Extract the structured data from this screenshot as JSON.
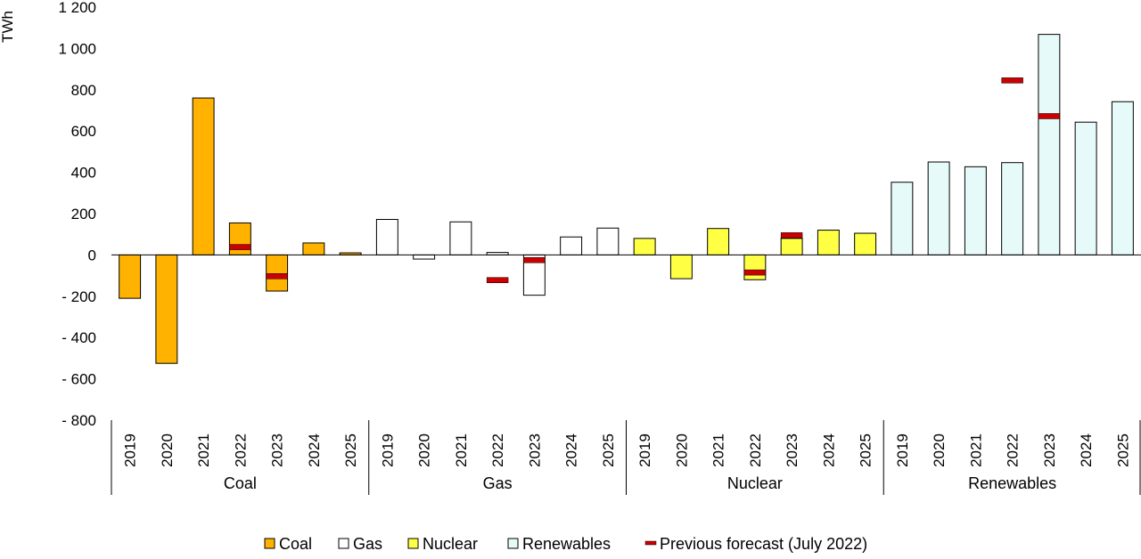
{
  "chart_data": {
    "type": "bar",
    "ylabel": "TWh",
    "ylim": [
      -800,
      1200
    ],
    "yticks": [
      1200,
      1000,
      800,
      600,
      400,
      200,
      0,
      -200,
      -400,
      -600,
      -800
    ],
    "ytick_labels": [
      "1 200",
      "1 000",
      "800",
      "600",
      "400",
      "200",
      "0",
      "- 200",
      "- 400",
      "- 600",
      "- 800"
    ],
    "years": [
      "2019",
      "2020",
      "2021",
      "2022",
      "2023",
      "2024",
      "2025"
    ],
    "groups": [
      {
        "name": "Coal",
        "color": "#FFB300",
        "values": [
          -210,
          -525,
          760,
          155,
          -175,
          58,
          10
        ]
      },
      {
        "name": "Gas",
        "color": "#FFFFFF",
        "values": [
          172,
          -20,
          160,
          12,
          -195,
          87,
          130
        ]
      },
      {
        "name": "Nuclear",
        "color": "#FFFF44",
        "values": [
          80,
          -115,
          128,
          -120,
          80,
          120,
          105
        ]
      },
      {
        "name": "Renewables",
        "color": "#E6FAFA",
        "values": [
          352,
          450,
          427,
          447,
          1068,
          643,
          742
        ]
      }
    ],
    "previous_forecast": {
      "name": "Previous forecast (July 2022)",
      "color": "#CC0000",
      "points": [
        {
          "group": "Coal",
          "year": "2022",
          "value": 38
        },
        {
          "group": "Coal",
          "year": "2023",
          "value": -103
        },
        {
          "group": "Gas",
          "year": "2022",
          "value": -122
        },
        {
          "group": "Gas",
          "year": "2023",
          "value": -25
        },
        {
          "group": "Nuclear",
          "year": "2022",
          "value": -85
        },
        {
          "group": "Nuclear",
          "year": "2023",
          "value": 95
        },
        {
          "group": "Renewables",
          "year": "2022",
          "value": 845
        },
        {
          "group": "Renewables",
          "year": "2023",
          "value": 672
        }
      ]
    },
    "legend": [
      "Coal",
      "Gas",
      "Nuclear",
      "Renewables",
      "Previous forecast (July 2022)"
    ],
    "legend_position": "bottom"
  }
}
